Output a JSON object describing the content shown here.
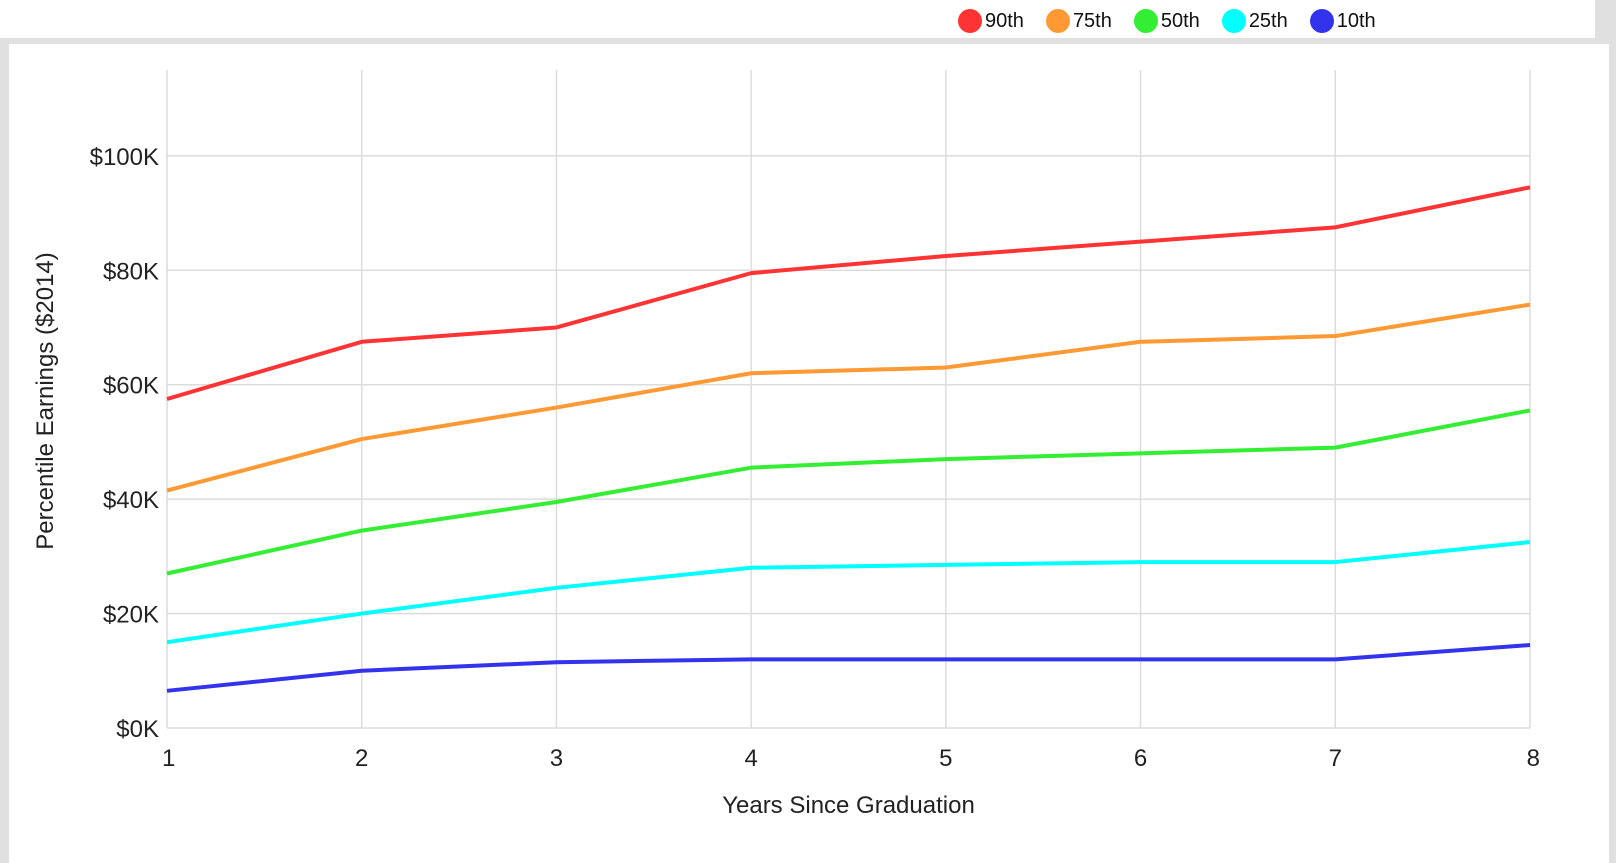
{
  "chart_data": {
    "type": "line",
    "xlabel": "Years Since Graduation",
    "ylabel": "Percentile Earnings ($2014)",
    "x": [
      1,
      2,
      3,
      4,
      5,
      6,
      7,
      8
    ],
    "xlim": [
      1,
      8
    ],
    "ylim": [
      0,
      115000
    ],
    "yticks": [
      0,
      20000,
      40000,
      60000,
      80000,
      100000
    ],
    "ytick_labels": [
      "$0K",
      "$20K",
      "$40K",
      "$60K",
      "$80K",
      "$100K"
    ],
    "xtick_labels": [
      "1",
      "2",
      "3",
      "4",
      "5",
      "6",
      "7",
      "8"
    ],
    "grid": true,
    "legend_position": "top-right",
    "series": [
      {
        "name": "90th",
        "color": "#ff3333",
        "values": [
          57500,
          67500,
          70000,
          79500,
          82500,
          85000,
          87500,
          94500
        ]
      },
      {
        "name": "75th",
        "color": "#ff9933",
        "values": [
          41500,
          50500,
          56000,
          62000,
          63000,
          67500,
          68500,
          74000
        ]
      },
      {
        "name": "50th",
        "color": "#33ee33",
        "values": [
          27000,
          34500,
          39500,
          45500,
          47000,
          48000,
          49000,
          55500
        ]
      },
      {
        "name": "25th",
        "color": "#00ffff",
        "values": [
          15000,
          20000,
          24500,
          28000,
          28500,
          29000,
          29000,
          32500
        ]
      },
      {
        "name": "10th",
        "color": "#3333ee",
        "values": [
          6500,
          10000,
          11500,
          12000,
          12000,
          12000,
          12000,
          14500
        ]
      }
    ]
  }
}
